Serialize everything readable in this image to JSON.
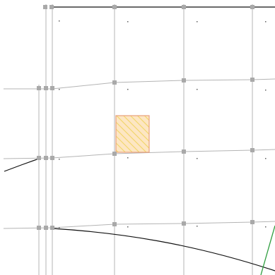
{
  "viewport": {
    "background": "#ffffff"
  },
  "colors": {
    "grid_line": "#b4b4b4",
    "node_fill": "#a9a9a9",
    "node_small": "#9a9a9a",
    "boundary_line": "#111111",
    "dot": "#606060",
    "curve_green": "#2e9e3f",
    "hatch_fill": "#fde6c3",
    "hatch_stroke": "#e9a17d",
    "hatch_lines": "#f1d567"
  },
  "elements": {
    "hatched_element": "selected-cell-hatch",
    "green_curve": "alignment-curve",
    "boundary": "outer-boundary-line"
  }
}
